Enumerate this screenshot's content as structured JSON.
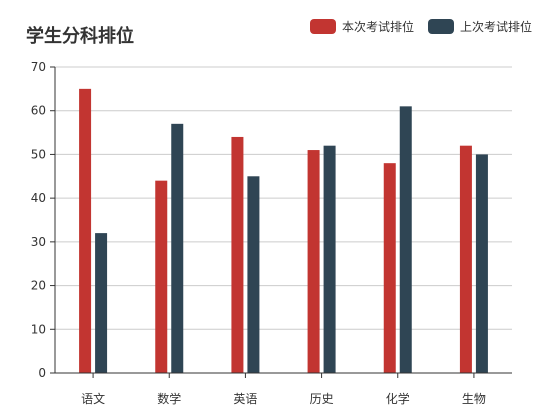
{
  "chart_data": {
    "type": "bar",
    "title": "学生分科排位",
    "xlabel": "",
    "ylabel": "",
    "categories": [
      "语文",
      "数学",
      "英语",
      "历史",
      "化学",
      "生物"
    ],
    "ylim": [
      0,
      70
    ],
    "yticks": [
      0,
      10,
      20,
      30,
      40,
      50,
      60,
      70
    ],
    "grid": true,
    "legend_position": "top-right",
    "series": [
      {
        "name": "本次考试排位",
        "color": "#c23531",
        "values": [
          65,
          44,
          54,
          51,
          48,
          52
        ]
      },
      {
        "name": "上次考试排位",
        "color": "#2f4554",
        "values": [
          32,
          57,
          45,
          52,
          61,
          50
        ]
      }
    ]
  }
}
